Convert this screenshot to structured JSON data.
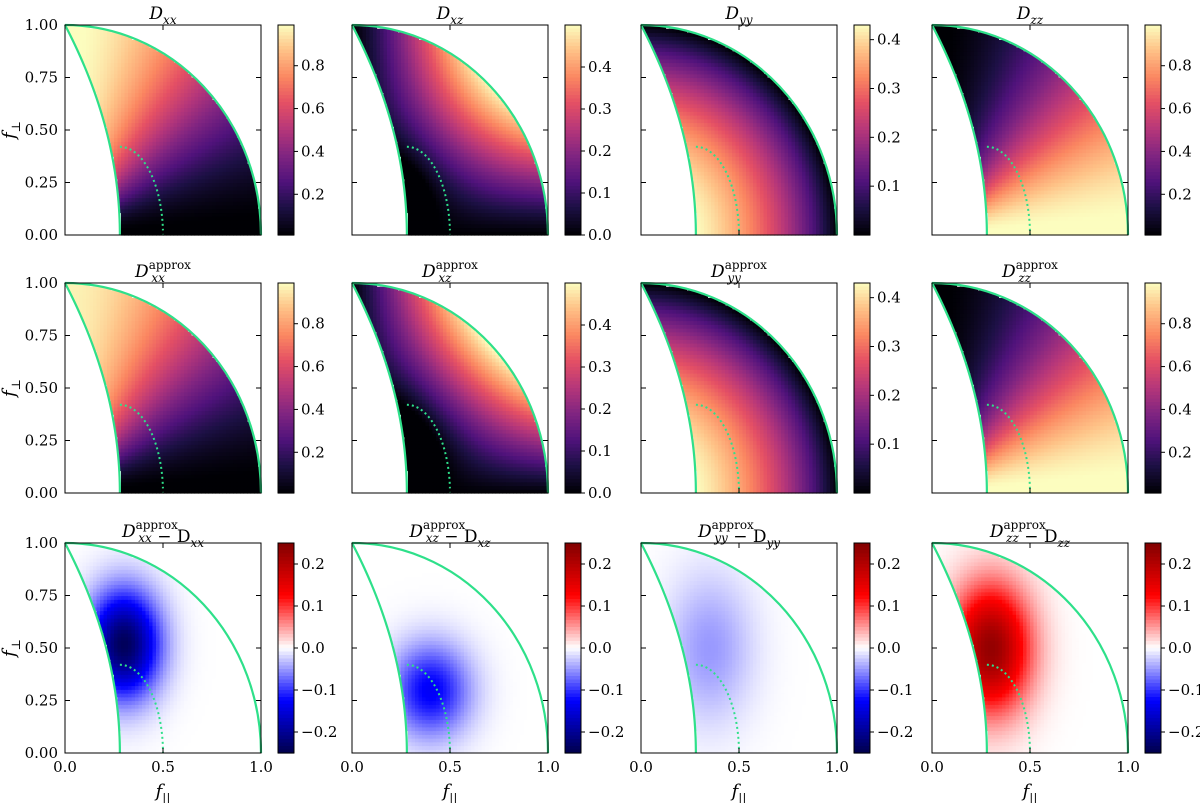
{
  "figure": {
    "columns": 4,
    "rows": 3
  },
  "chart_data": {
    "type": "heatmap",
    "description_axes": {
      "xlabel_main": "f",
      "xlabel_sub": "||",
      "ylabel_main": "f",
      "ylabel_sub": "⊥",
      "xlim": [
        0.0,
        1.0
      ],
      "ylim": [
        0.0,
        1.0
      ],
      "x_ticks": [
        "0.0",
        "0.5",
        "1.0"
      ],
      "y_ticks": [
        "0.00",
        "0.25",
        "0.50",
        "0.75",
        "1.00"
      ]
    },
    "boundaries": {
      "outer_radius": 1.0,
      "inner_curve_top": [
        0.0,
        1.0
      ],
      "inner_curve_bottom": [
        0.28,
        0.0
      ],
      "dotted_arc_start": [
        0.28,
        0.42
      ],
      "dotted_arc_end": [
        0.5,
        0.0
      ],
      "line_color": "#2ee08a"
    },
    "rows": [
      {
        "name": "exact",
        "colormap": "magma",
        "panels": [
          {
            "title_main": "D",
            "title_sub": "xx",
            "title_sup": "",
            "title_tail": "",
            "title_tail_sub": "",
            "cbar_ticks": [
              "0.2",
              "0.4",
              "0.6",
              "0.8"
            ],
            "cbar_tick_values": [
              0.2,
              0.4,
              0.6,
              0.8
            ],
            "vmin": 0.01,
            "vmax": 0.99,
            "field": "xx"
          },
          {
            "title_main": "D",
            "title_sub": "xz",
            "title_sup": "",
            "title_tail": "",
            "title_tail_sub": "",
            "cbar_ticks": [
              "0.0",
              "0.1",
              "0.2",
              "0.3",
              "0.4"
            ],
            "cbar_tick_values": [
              0.0,
              0.1,
              0.2,
              0.3,
              0.4
            ],
            "vmin": 0.0,
            "vmax": 0.5,
            "field": "xz"
          },
          {
            "title_main": "D",
            "title_sub": "yy",
            "title_sup": "",
            "title_tail": "",
            "title_tail_sub": "",
            "cbar_ticks": [
              "0.1",
              "0.2",
              "0.3",
              "0.4"
            ],
            "cbar_tick_values": [
              0.1,
              0.2,
              0.3,
              0.4
            ],
            "vmin": 0.0,
            "vmax": 0.43,
            "field": "yy"
          },
          {
            "title_main": "D",
            "title_sub": "zz",
            "title_sup": "",
            "title_tail": "",
            "title_tail_sub": "",
            "cbar_ticks": [
              "0.2",
              "0.4",
              "0.6",
              "0.8"
            ],
            "cbar_tick_values": [
              0.2,
              0.4,
              0.6,
              0.8
            ],
            "vmin": 0.01,
            "vmax": 0.99,
            "field": "zz"
          }
        ]
      },
      {
        "name": "approx",
        "colormap": "magma",
        "panels": [
          {
            "title_main": "D",
            "title_sub": "xx",
            "title_sup": "approx",
            "title_tail": "",
            "title_tail_sub": "",
            "cbar_ticks": [
              "0.2",
              "0.4",
              "0.6",
              "0.8"
            ],
            "cbar_tick_values": [
              0.2,
              0.4,
              0.6,
              0.8
            ],
            "vmin": 0.01,
            "vmax": 0.99,
            "field": "xx_a"
          },
          {
            "title_main": "D",
            "title_sub": "xz",
            "title_sup": "approx",
            "title_tail": "",
            "title_tail_sub": "",
            "cbar_ticks": [
              "0.0",
              "0.1",
              "0.2",
              "0.3",
              "0.4"
            ],
            "cbar_tick_values": [
              0.0,
              0.1,
              0.2,
              0.3,
              0.4
            ],
            "vmin": 0.0,
            "vmax": 0.5,
            "field": "xz_a"
          },
          {
            "title_main": "D",
            "title_sub": "yy",
            "title_sup": "approx",
            "title_tail": "",
            "title_tail_sub": "",
            "cbar_ticks": [
              "0.1",
              "0.2",
              "0.3",
              "0.4"
            ],
            "cbar_tick_values": [
              0.1,
              0.2,
              0.3,
              0.4
            ],
            "vmin": 0.0,
            "vmax": 0.43,
            "field": "yy_a"
          },
          {
            "title_main": "D",
            "title_sub": "zz",
            "title_sup": "approx",
            "title_tail": "",
            "title_tail_sub": "",
            "cbar_ticks": [
              "0.2",
              "0.4",
              "0.6",
              "0.8"
            ],
            "cbar_tick_values": [
              0.2,
              0.4,
              0.6,
              0.8
            ],
            "vmin": 0.01,
            "vmax": 0.99,
            "field": "zz_a"
          }
        ]
      },
      {
        "name": "difference",
        "colormap": "seismic",
        "panels": [
          {
            "title_main": "D",
            "title_sub": "xx",
            "title_sup": "approx",
            "title_tail": " − D",
            "title_tail_sub": "xx",
            "cbar_ticks": [
              "−0.2",
              "−0.1",
              "0.0",
              "0.1",
              "0.2"
            ],
            "cbar_tick_values": [
              -0.2,
              -0.1,
              0.0,
              0.1,
              0.2
            ],
            "vmin": -0.25,
            "vmax": 0.25,
            "field": "dxx"
          },
          {
            "title_main": "D",
            "title_sub": "xz",
            "title_sup": "approx",
            "title_tail": " − D",
            "title_tail_sub": "xz",
            "cbar_ticks": [
              "−0.2",
              "−0.1",
              "0.0",
              "0.1",
              "0.2"
            ],
            "cbar_tick_values": [
              -0.2,
              -0.1,
              0.0,
              0.1,
              0.2
            ],
            "vmin": -0.25,
            "vmax": 0.25,
            "field": "dxz"
          },
          {
            "title_main": "D",
            "title_sub": "yy",
            "title_sup": "approx",
            "title_tail": " − D",
            "title_tail_sub": "yy",
            "cbar_ticks": [
              "−0.2",
              "−0.1",
              "0.0",
              "0.1",
              "0.2"
            ],
            "cbar_tick_values": [
              -0.2,
              -0.1,
              0.0,
              0.1,
              0.2
            ],
            "vmin": -0.25,
            "vmax": 0.25,
            "field": "dyy"
          },
          {
            "title_main": "D",
            "title_sub": "zz",
            "title_sup": "approx",
            "title_tail": " − D",
            "title_tail_sub": "zz",
            "cbar_ticks": [
              "−0.2",
              "−0.1",
              "0.0",
              "0.1",
              "0.2"
            ],
            "cbar_tick_values": [
              -0.2,
              -0.1,
              0.0,
              0.1,
              0.2
            ],
            "vmin": -0.25,
            "vmax": 0.25,
            "field": "dzz"
          }
        ]
      }
    ]
  }
}
